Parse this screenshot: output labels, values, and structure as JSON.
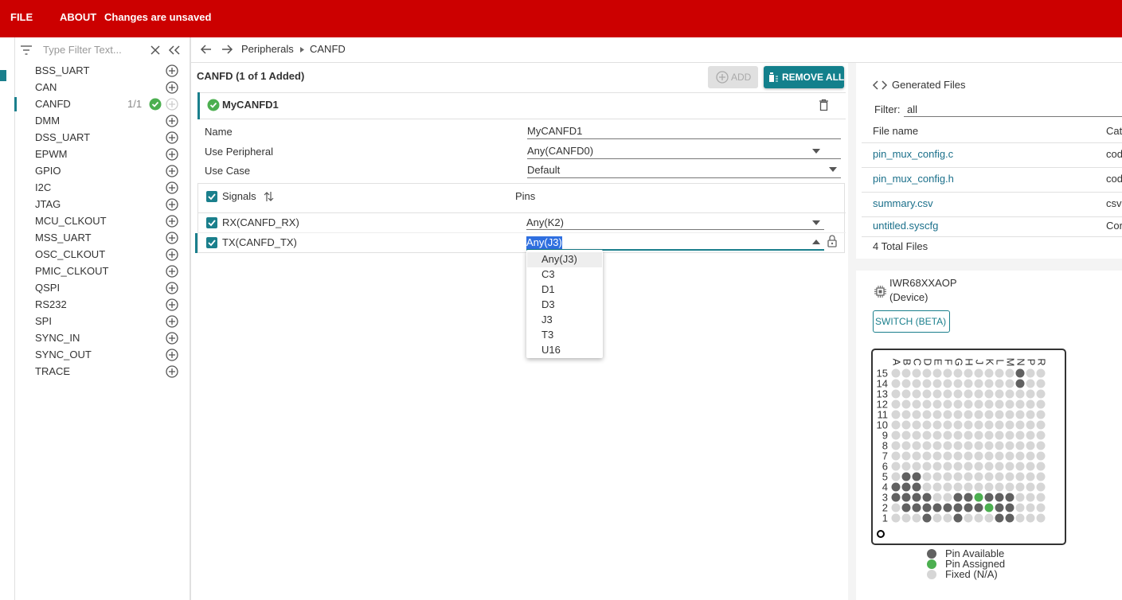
{
  "header": {
    "file": "FILE",
    "about": "ABOUT",
    "status": "Changes are unsaved"
  },
  "sidebar": {
    "filter_placeholder": "Type Filter Text...",
    "items": [
      {
        "label": "BSS_UART"
      },
      {
        "label": "CAN"
      },
      {
        "label": "CANFD",
        "count": "1/1",
        "selected": true
      },
      {
        "label": "DMM"
      },
      {
        "label": "DSS_UART"
      },
      {
        "label": "EPWM"
      },
      {
        "label": "GPIO"
      },
      {
        "label": "I2C"
      },
      {
        "label": "JTAG"
      },
      {
        "label": "MCU_CLKOUT"
      },
      {
        "label": "MSS_UART"
      },
      {
        "label": "OSC_CLKOUT"
      },
      {
        "label": "PMIC_CLKOUT"
      },
      {
        "label": "QSPI"
      },
      {
        "label": "RS232"
      },
      {
        "label": "SPI"
      },
      {
        "label": "SYNC_IN"
      },
      {
        "label": "SYNC_OUT"
      },
      {
        "label": "TRACE"
      }
    ]
  },
  "breadcrumb": [
    "Peripherals",
    "CANFD"
  ],
  "panel": {
    "title": "CANFD (1 of 1 Added)",
    "add": "ADD",
    "remove_all": "REMOVE ALL",
    "instance": "MyCANFD1",
    "fields": [
      {
        "label": "Name",
        "value": "MyCANFD1"
      },
      {
        "label": "Use Peripheral",
        "value": "Any(CANFD0)"
      },
      {
        "label": "Use Case",
        "value": "Default"
      }
    ],
    "signals_header": "Signals",
    "pins_header": "Pins",
    "signals": [
      {
        "name": "RX(CANFD_RX)",
        "pin": "Any(K2)"
      },
      {
        "name": "TX(CANFD_TX)",
        "pin": "Any(J3)"
      }
    ],
    "dropdown": [
      "Any(J3)",
      "C3",
      "D1",
      "D3",
      "J3",
      "T3",
      "U16"
    ]
  },
  "files": {
    "title": "Generated Files",
    "filter_label": "Filter:",
    "filter_value": "all",
    "columns": [
      "File name",
      "Cat"
    ],
    "rows": [
      [
        "pin_mux_config.c",
        "cod"
      ],
      [
        "pin_mux_config.h",
        "cod"
      ],
      [
        "summary.csv",
        "csv"
      ],
      [
        "untitled.syscfg",
        "Cor"
      ]
    ],
    "total": "4 Total Files"
  },
  "device": {
    "name": "IWR68XXAOP",
    "sub": "(Device)",
    "switch": "SWITCH (BETA)",
    "columns": [
      "A",
      "B",
      "C",
      "D",
      "E",
      "F",
      "G",
      "H",
      "J",
      "K",
      "L",
      "M",
      "N",
      "P",
      "R"
    ],
    "rows": [
      "15",
      "14",
      "13",
      "12",
      "11",
      "10",
      "9",
      "8",
      "7",
      "6",
      "5",
      "4",
      "3",
      "2",
      "1"
    ],
    "available": [
      "N15",
      "N14",
      "B5",
      "C5",
      "A4",
      "B4",
      "C4",
      "A3",
      "B3",
      "C3",
      "D3",
      "G3",
      "H3",
      "K3",
      "L3",
      "M3",
      "B2",
      "C2",
      "D2",
      "E2",
      "F2",
      "G2",
      "H2",
      "J2",
      "L2",
      "M2",
      "D1",
      "G1",
      "L1",
      "M1"
    ],
    "assigned": [
      "J3",
      "K2"
    ],
    "legend": [
      {
        "label": "Pin Available",
        "color": "#616161"
      },
      {
        "label": "Pin Assigned",
        "color": "#4caf50"
      },
      {
        "label": "Fixed (N/A)",
        "color": "#d6d6d6"
      }
    ]
  }
}
